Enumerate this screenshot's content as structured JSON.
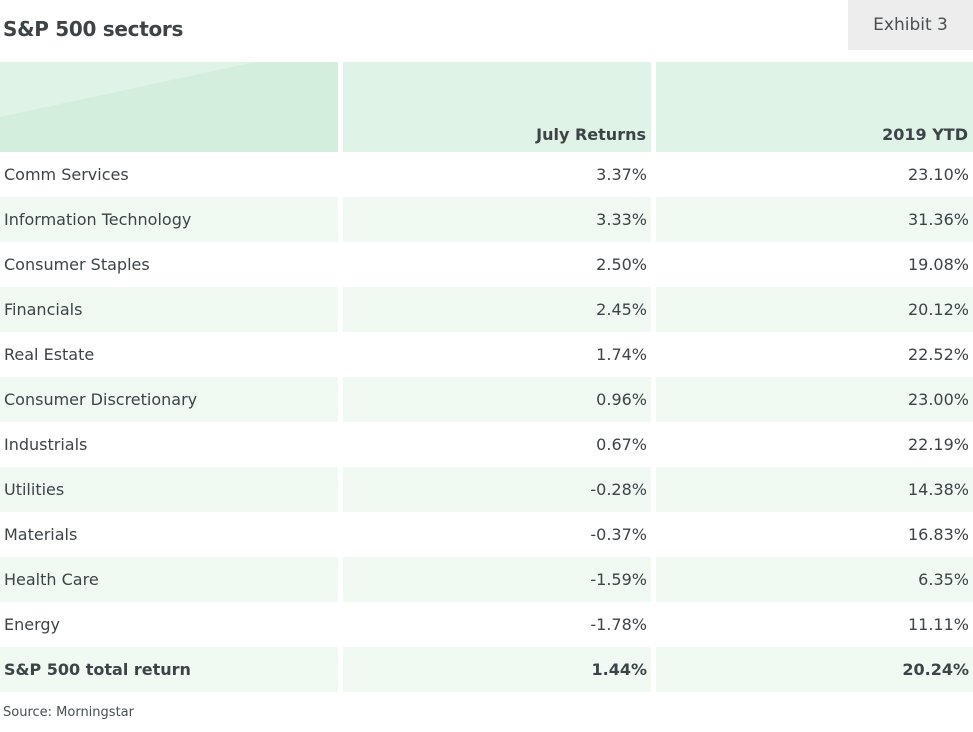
{
  "header": {
    "title": "S&P 500 sectors",
    "exhibit": "Exhibit 3"
  },
  "chart_data": {
    "type": "table",
    "columns": [
      "",
      "July Returns",
      "2019 YTD"
    ],
    "rows": [
      [
        "Comm Services",
        "3.37%",
        "23.10%"
      ],
      [
        "Information Technology",
        "3.33%",
        "31.36%"
      ],
      [
        "Consumer Staples",
        "2.50%",
        "19.08%"
      ],
      [
        "Financials",
        "2.45%",
        "20.12%"
      ],
      [
        "Real Estate",
        "1.74%",
        "22.52%"
      ],
      [
        "Consumer Discretionary",
        "0.96%",
        "23.00%"
      ],
      [
        "Industrials",
        "0.67%",
        "22.19%"
      ],
      [
        "Utilities",
        "-0.28%",
        "14.38%"
      ],
      [
        "Materials",
        "-0.37%",
        "16.83%"
      ],
      [
        "Health Care",
        "-1.59%",
        "6.35%"
      ],
      [
        "Energy",
        "-1.78%",
        "11.11%"
      ]
    ],
    "total_row": [
      "S&P 500 total return",
      "1.44%",
      "20.24%"
    ]
  },
  "footer": {
    "source": "Source: Morningstar"
  },
  "colors": {
    "header_bg": "#dff3e6",
    "alt_row_bg": "#f0faf3",
    "exhibit_bg": "#ededed",
    "text": "#3d4347"
  }
}
